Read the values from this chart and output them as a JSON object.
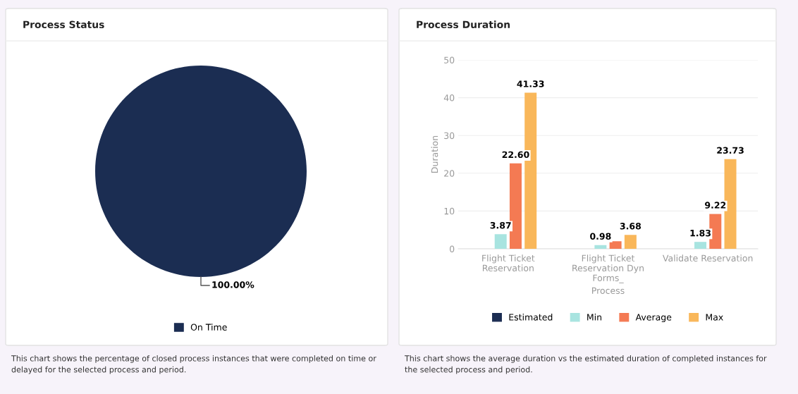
{
  "chart_data": [
    {
      "type": "pie",
      "title": "Process Status",
      "categories": [
        "On Time"
      ],
      "values": [
        100
      ],
      "colors": [
        "#1b2d52"
      ],
      "value_labels": [
        "100.00%"
      ],
      "legend": "bottom",
      "annotations": [
        "This chart shows the percentage of closed process instances that were completed on time or\ndelayed for the selected process and period."
      ]
    },
    {
      "type": "bar",
      "title": "Process Duration",
      "xlabel": "Process",
      "ylabel": "Duration",
      "categories": [
        "Flight Ticket\nReservation",
        "Flight Ticket\nReservation Dyn\nForms_",
        "Validate Reservation"
      ],
      "series": [
        {
          "name": "Estimated",
          "color": "#1b2d52",
          "values": [
            null,
            null,
            null
          ]
        },
        {
          "name": "Min",
          "color": "#a8e4e0",
          "values": [
            3.87,
            0.98,
            1.83
          ],
          "value_labels": [
            "3.87",
            "0.98",
            "1.83"
          ]
        },
        {
          "name": "Average",
          "color": "#f47a53",
          "values": [
            22.6,
            2.0,
            9.22
          ],
          "value_labels": [
            "22.60",
            null,
            "9.22"
          ]
        },
        {
          "name": "Max",
          "color": "#f9b75a",
          "values": [
            41.33,
            3.68,
            23.73
          ],
          "value_labels": [
            "41.33",
            "3.68",
            "23.73"
          ]
        }
      ],
      "ylim": [
        0,
        50
      ],
      "yticks": [
        0,
        10,
        20,
        30,
        40,
        50
      ],
      "grid": "y",
      "legend": "bottom",
      "annotations": [
        "This chart shows the average duration vs the estimated duration of completed instances for\nthe selected process and period."
      ]
    }
  ]
}
